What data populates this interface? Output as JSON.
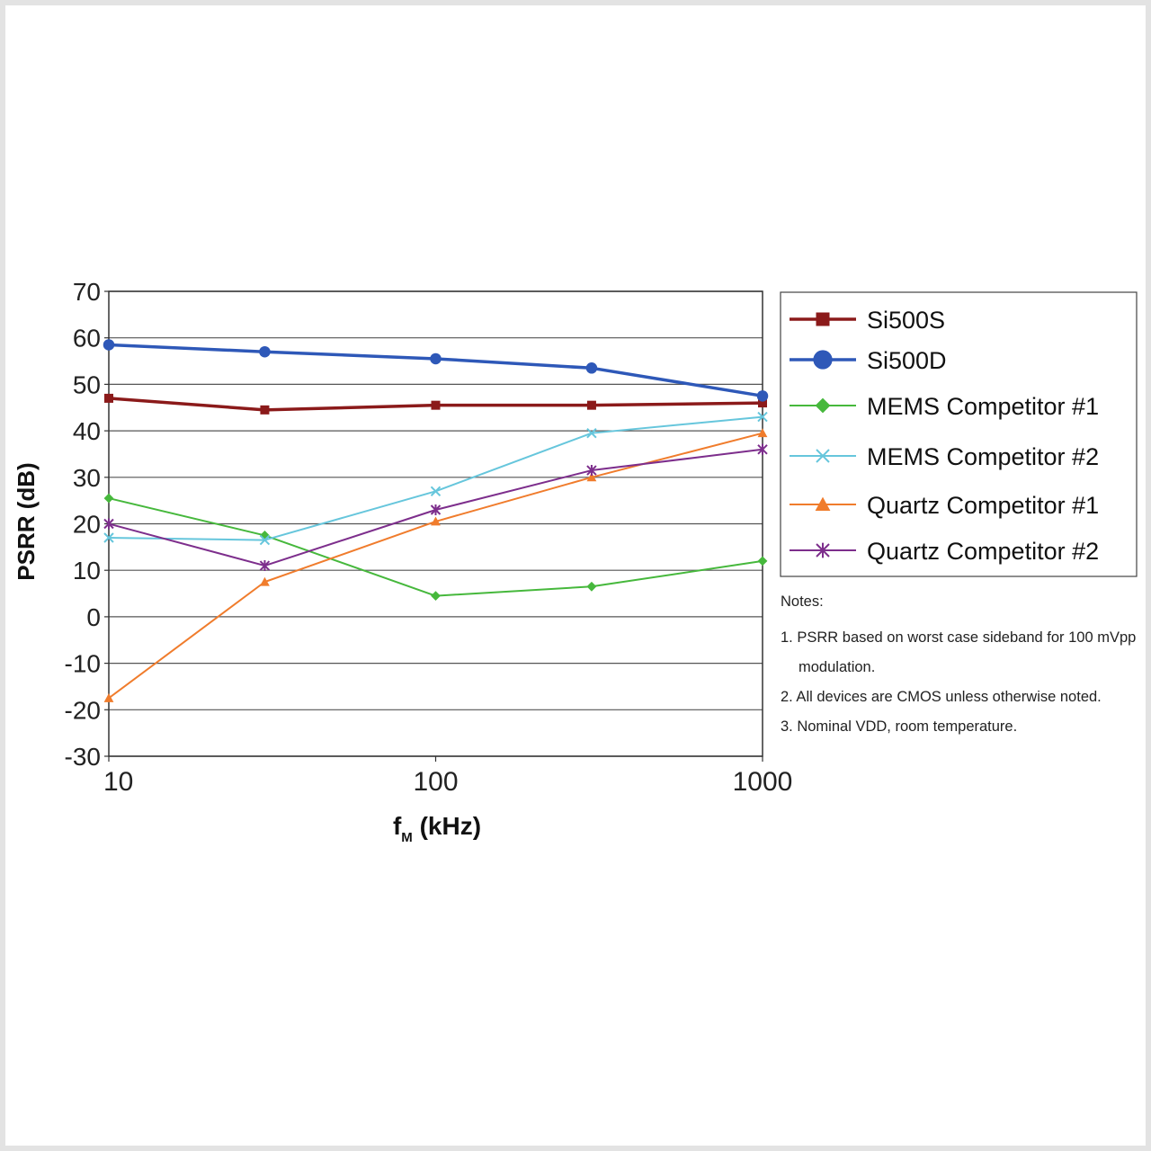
{
  "chart_data": {
    "type": "line",
    "xlabel_main": "f",
    "xlabel_sub": "M",
    "xlabel_unit": " (kHz)",
    "ylabel": "PSRR (dB)",
    "xscale": "log",
    "xlim": [
      10,
      1000
    ],
    "ylim": [
      -30,
      70
    ],
    "x_ticks": [
      "10",
      "100",
      "1000"
    ],
    "y_ticks": [
      "70",
      "60",
      "50",
      "40",
      "30",
      "20",
      "10",
      "0",
      "-10",
      "-20",
      "-30"
    ],
    "grid": true,
    "legend_position": "right",
    "x": [
      10,
      30,
      100,
      300,
      1000
    ],
    "series": [
      {
        "name": "Si500S",
        "color": "#8b1a1a",
        "marker": "square",
        "values": [
          47,
          44.5,
          45.5,
          45.5,
          46
        ]
      },
      {
        "name": "Si500D",
        "color": "#2e58b8",
        "marker": "circle",
        "values": [
          58.5,
          57,
          55.5,
          53.5,
          47.5
        ]
      },
      {
        "name": "MEMS Competitor #1",
        "color": "#46b83c",
        "marker": "diamond",
        "values": [
          25.5,
          17.5,
          4.5,
          6.5,
          12
        ]
      },
      {
        "name": "MEMS Competitor #2",
        "color": "#66c6dc",
        "marker": "x",
        "values": [
          17,
          16.5,
          27,
          39.5,
          43
        ]
      },
      {
        "name": "Quartz Competitor #1",
        "color": "#f07c2c",
        "marker": "triangle",
        "values": [
          -17.5,
          7.5,
          20.5,
          30,
          39.5
        ]
      },
      {
        "name": "Quartz Competitor #2",
        "color": "#7d2e8c",
        "marker": "star",
        "values": [
          20,
          11,
          23,
          31.5,
          36
        ]
      }
    ]
  },
  "notes": {
    "title": "Notes:",
    "items": [
      "1. PSRR based on worst case sideband for 100 mVpp modulation.",
      "2. All devices are CMOS unless otherwise noted.",
      "3. Nominal VDD, room temperature."
    ]
  }
}
